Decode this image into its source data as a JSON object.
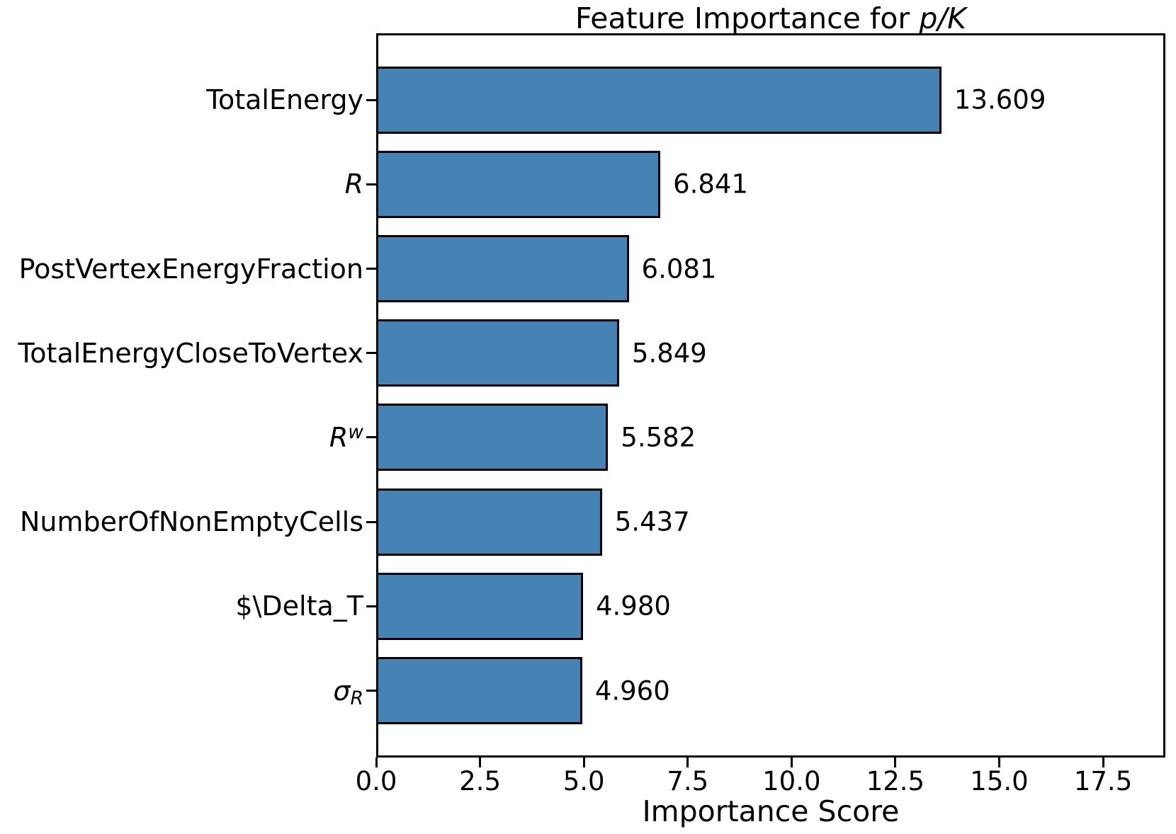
{
  "figure": {
    "title_prefix": "Feature Importance for ",
    "title_math": "p/K",
    "xlabel": "Importance Score"
  },
  "chart_data": {
    "type": "bar",
    "orientation": "horizontal",
    "title": "Feature Importance for p/K",
    "xlabel": "Importance Score",
    "ylabel": "",
    "xlim": [
      0,
      19
    ],
    "xticks": [
      0,
      2.5,
      5,
      7.5,
      10,
      12.5,
      15,
      17.5
    ],
    "xtick_labels": [
      "0.0",
      "2.5",
      "5.0",
      "7.5",
      "10.0",
      "12.5",
      "15.0",
      "17.5"
    ],
    "grid": false,
    "legend": false,
    "bar_color": "#4682B4",
    "bar_edge_color": "#000000",
    "categories": [
      "TotalEnergy",
      "R",
      "PostVertexEnergyFraction",
      "TotalEnergyCloseToVertex",
      "R^w",
      "NumberOfNonEmptyCells",
      "$\\Delta_T",
      "σ_R"
    ],
    "values": [
      13.609,
      6.841,
      6.081,
      5.849,
      5.582,
      5.437,
      4.98,
      4.96
    ],
    "value_labels": [
      "13.609",
      "6.841",
      "6.081",
      "5.849",
      "5.582",
      "5.437",
      "4.980",
      "4.960"
    ],
    "category_segments": [
      [
        {
          "text": "TotalEnergy"
        }
      ],
      [
        {
          "text": "R",
          "italic": true
        }
      ],
      [
        {
          "text": "PostVertexEnergyFraction"
        }
      ],
      [
        {
          "text": "TotalEnergyCloseToVertex"
        }
      ],
      [
        {
          "text": "R",
          "italic": true
        },
        {
          "text": "w",
          "italic": true,
          "sup": true
        }
      ],
      [
        {
          "text": "NumberOfNonEmptyCells"
        }
      ],
      [
        {
          "text": "$\\Delta_T"
        }
      ],
      [
        {
          "text": "σ",
          "italic": true
        },
        {
          "text": "R",
          "italic": true,
          "sub": true
        }
      ]
    ]
  }
}
